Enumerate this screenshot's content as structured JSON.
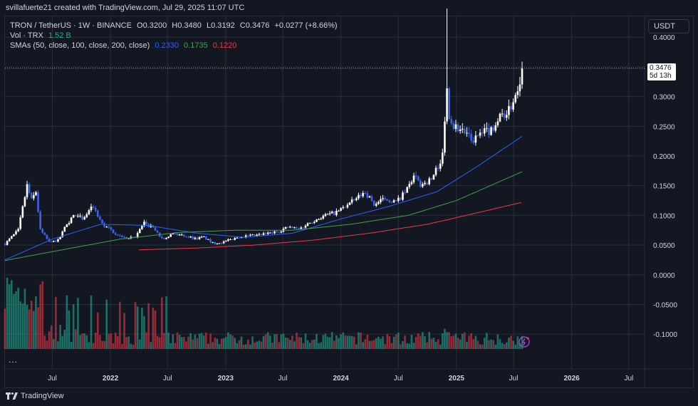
{
  "header": {
    "caption": "svillafuerte21 created with TradingView.com, Jul 29, 2025 11:07 UTC"
  },
  "legend": {
    "symbol_line": "TRON / TetherUS · 1W · BINANCE",
    "open_label": "O",
    "open": "0.3200",
    "high_label": "H",
    "high": "0.3480",
    "low_label": "L",
    "low": "0.3192",
    "close_label": "C",
    "close": "0.3476",
    "change": "+0.0277 (+8.66%)",
    "volume_label": "Vol · TRX",
    "volume_value": "1.52 B",
    "sma_label": "SMAs (50, close, 100, close, 200, close)",
    "sma50_value": "0.2330",
    "sma100_value": "0.1735",
    "sma200_value": "0.1220"
  },
  "toolbar": {
    "currency": "USDT",
    "more": "..."
  },
  "price_tag": {
    "price": "0.3476",
    "countdown": "5d 13h"
  },
  "footer": {
    "brand": "TradingView"
  },
  "colors": {
    "background": "#131722",
    "grid": "#2a2e39",
    "up_candle": "#ffffff",
    "down_candle": "#3d63e8",
    "vol_up": "#22ab94",
    "vol_down": "#f23645",
    "sma50": "#2962ff",
    "sma100": "#43a047",
    "sma200": "#f23645"
  },
  "chart_data": {
    "type": "candlestick",
    "symbol": "TRON / TetherUS",
    "interval": "1W",
    "exchange": "BINANCE",
    "y_ticks": [
      "0.4000",
      "0.3500",
      "0.3000",
      "0.2500",
      "0.2000",
      "0.1500",
      "0.1000",
      "0.0500",
      "0.0000",
      "-0.0500",
      "-0.1000"
    ],
    "y_tick_values": [
      0.4,
      0.35,
      0.3,
      0.25,
      0.2,
      0.15,
      0.1,
      0.05,
      0.0,
      -0.05,
      -0.1
    ],
    "ylim": [
      -0.125,
      0.435
    ],
    "x_ticks": [
      {
        "label": "Jul",
        "date": "2021-07-01"
      },
      {
        "label": "2022",
        "date": "2022-01-01"
      },
      {
        "label": "Jul",
        "date": "2022-07-01"
      },
      {
        "label": "2023",
        "date": "2023-01-01"
      },
      {
        "label": "Jul",
        "date": "2023-07-01"
      },
      {
        "label": "2024",
        "date": "2024-01-01"
      },
      {
        "label": "Jul",
        "date": "2024-07-01"
      },
      {
        "label": "2025",
        "date": "2025-01-01"
      },
      {
        "label": "Jul",
        "date": "2025-07-01"
      },
      {
        "label": "2026",
        "date": "2026-01-01"
      },
      {
        "label": "Jul",
        "date": "2026-07-01"
      }
    ],
    "xlim": [
      "2021-02-01",
      "2026-08-20"
    ],
    "grid": true,
    "last_price": 0.3476,
    "close_anchors": [
      [
        "2021-02-01",
        0.052
      ],
      [
        "2021-03-15",
        0.075
      ],
      [
        "2021-04-12",
        0.15
      ],
      [
        "2021-04-26",
        0.125
      ],
      [
        "2021-05-10",
        0.14
      ],
      [
        "2021-05-24",
        0.075
      ],
      [
        "2021-06-21",
        0.055
      ],
      [
        "2021-07-19",
        0.058
      ],
      [
        "2021-08-16",
        0.085
      ],
      [
        "2021-09-06",
        0.1
      ],
      [
        "2021-10-04",
        0.095
      ],
      [
        "2021-11-08",
        0.115
      ],
      [
        "2021-12-06",
        0.085
      ],
      [
        "2022-01-10",
        0.072
      ],
      [
        "2022-02-14",
        0.062
      ],
      [
        "2022-03-21",
        0.065
      ],
      [
        "2022-04-18",
        0.088
      ],
      [
        "2022-05-16",
        0.078
      ],
      [
        "2022-06-13",
        0.06
      ],
      [
        "2022-07-18",
        0.069
      ],
      [
        "2022-08-22",
        0.066
      ],
      [
        "2022-09-26",
        0.061
      ],
      [
        "2022-10-24",
        0.063
      ],
      [
        "2022-11-21",
        0.053
      ],
      [
        "2022-12-26",
        0.055
      ],
      [
        "2023-02-13",
        0.064
      ],
      [
        "2023-04-10",
        0.066
      ],
      [
        "2023-06-12",
        0.072
      ],
      [
        "2023-07-17",
        0.08
      ],
      [
        "2023-08-21",
        0.077
      ],
      [
        "2023-10-02",
        0.09
      ],
      [
        "2023-11-13",
        0.1
      ],
      [
        "2023-12-18",
        0.105
      ],
      [
        "2024-02-12",
        0.125
      ],
      [
        "2024-03-18",
        0.14
      ],
      [
        "2024-04-15",
        0.118
      ],
      [
        "2024-05-20",
        0.128
      ],
      [
        "2024-06-24",
        0.122
      ],
      [
        "2024-07-22",
        0.138
      ],
      [
        "2024-08-19",
        0.165
      ],
      [
        "2024-09-09",
        0.152
      ],
      [
        "2024-10-14",
        0.16
      ],
      [
        "2024-11-18",
        0.2
      ],
      [
        "2024-12-02",
        0.31
      ],
      [
        "2024-12-09",
        0.27
      ],
      [
        "2024-12-23",
        0.25
      ],
      [
        "2025-01-20",
        0.245
      ],
      [
        "2025-02-17",
        0.225
      ],
      [
        "2025-03-17",
        0.235
      ],
      [
        "2025-04-21",
        0.245
      ],
      [
        "2025-05-26",
        0.27
      ],
      [
        "2025-06-16",
        0.275
      ],
      [
        "2025-07-14",
        0.315
      ],
      [
        "2025-07-28",
        0.3476
      ]
    ],
    "series": [
      {
        "name": "SMA 50",
        "latest": 0.233,
        "points": [
          [
            "2021-02-01",
            0.025
          ],
          [
            "2021-07-01",
            0.06
          ],
          [
            "2021-12-01",
            0.085
          ],
          [
            "2022-05-01",
            0.083
          ],
          [
            "2022-10-01",
            0.07
          ],
          [
            "2023-03-01",
            0.063
          ],
          [
            "2023-08-01",
            0.07
          ],
          [
            "2024-01-01",
            0.094
          ],
          [
            "2024-06-01",
            0.115
          ],
          [
            "2024-11-01",
            0.14
          ],
          [
            "2025-03-01",
            0.18
          ],
          [
            "2025-07-28",
            0.233
          ]
        ]
      },
      {
        "name": "SMA 100",
        "latest": 0.1735,
        "points": [
          [
            "2021-02-01",
            0.024
          ],
          [
            "2021-08-01",
            0.042
          ],
          [
            "2022-02-01",
            0.06
          ],
          [
            "2022-08-01",
            0.071
          ],
          [
            "2023-02-01",
            0.075
          ],
          [
            "2023-08-01",
            0.075
          ],
          [
            "2024-02-01",
            0.085
          ],
          [
            "2024-08-01",
            0.1
          ],
          [
            "2025-01-01",
            0.125
          ],
          [
            "2025-07-28",
            0.1735
          ]
        ]
      },
      {
        "name": "SMA 200",
        "latest": 0.122,
        "points": [
          [
            "2022-04-01",
            0.042
          ],
          [
            "2022-10-01",
            0.045
          ],
          [
            "2023-04-01",
            0.05
          ],
          [
            "2023-10-01",
            0.058
          ],
          [
            "2024-04-01",
            0.07
          ],
          [
            "2024-10-01",
            0.085
          ],
          [
            "2025-02-01",
            0.1
          ],
          [
            "2025-07-28",
            0.122
          ]
        ]
      }
    ],
    "spike": {
      "date": "2024-12-02",
      "high": 0.4483
    }
  }
}
